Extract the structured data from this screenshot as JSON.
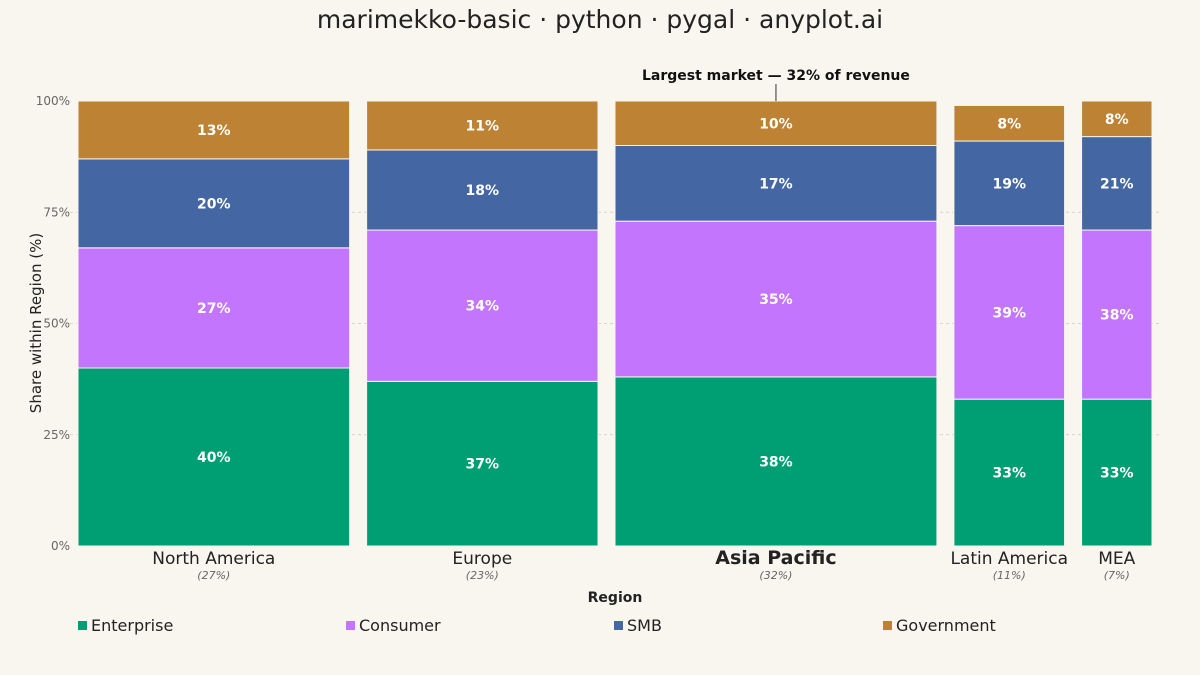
{
  "title": "marimekko-basic · python · pygal · anyplot.ai",
  "chart_data": {
    "type": "marimekko",
    "xlabel": "Region",
    "ylabel": "Share within Region (%)",
    "ylim": [
      0,
      100
    ],
    "yticks": [
      "0%",
      "25%",
      "50%",
      "75%",
      "100%"
    ],
    "grid": true,
    "legend_position": "bottom",
    "annotation": "Largest market — 32% of revenue",
    "highlight_category": "Asia Pacific",
    "categories": [
      {
        "name": "North America",
        "width_label": "(27%)",
        "width": 27
      },
      {
        "name": "Europe",
        "width_label": "(23%)",
        "width": 23
      },
      {
        "name": "Asia Pacific",
        "width_label": "(32%)",
        "width": 32
      },
      {
        "name": "Latin America",
        "width_label": "(11%)",
        "width": 11
      },
      {
        "name": "MEA",
        "width_label": "(7%)",
        "width": 7
      }
    ],
    "series": [
      {
        "name": "Enterprise",
        "color": "#009e73",
        "values": [
          40,
          37,
          38,
          33,
          33
        ],
        "labels": [
          "40%",
          "37%",
          "38%",
          "33%",
          "33%"
        ]
      },
      {
        "name": "Consumer",
        "color": "#c475fd",
        "values": [
          27,
          34,
          35,
          39,
          38
        ],
        "labels": [
          "27%",
          "34%",
          "35%",
          "39%",
          "38%"
        ]
      },
      {
        "name": "SMB",
        "color": "#4467a3",
        "values": [
          20,
          18,
          17,
          19,
          21
        ],
        "labels": [
          "20%",
          "18%",
          "17%",
          "19%",
          "21%"
        ]
      },
      {
        "name": "Government",
        "color": "#bd8233",
        "values": [
          13,
          11,
          10,
          8,
          8
        ],
        "labels": [
          "13%",
          "11%",
          "10%",
          "8%",
          "8%"
        ]
      }
    ]
  }
}
